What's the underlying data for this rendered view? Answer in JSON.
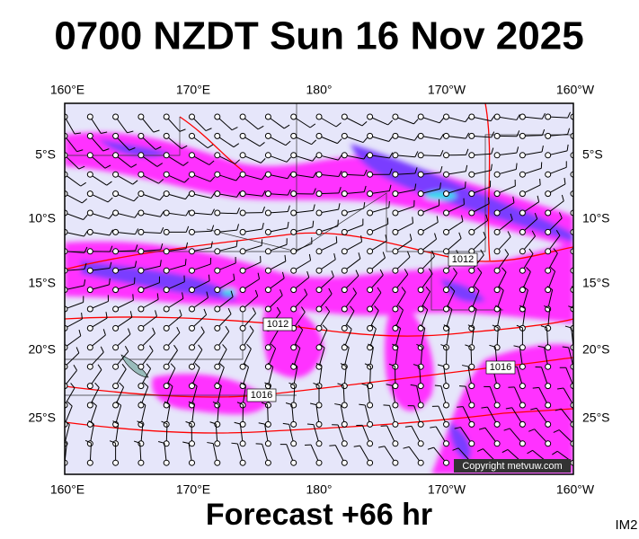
{
  "title": "0700 NZDT Sun 16 Nov 2025",
  "lon_labels": [
    "160°E",
    "170°E",
    "180°",
    "170°W",
    "160°W"
  ],
  "lat_labels": [
    "5°S",
    "10°S",
    "15°S",
    "20°S",
    "25°S"
  ],
  "isobar_labels": [
    "1012",
    "1012",
    "1016",
    "1016"
  ],
  "copyright": "Copyright metvuw.com",
  "footer": "Forecast +66 hr",
  "code": "IM2"
}
